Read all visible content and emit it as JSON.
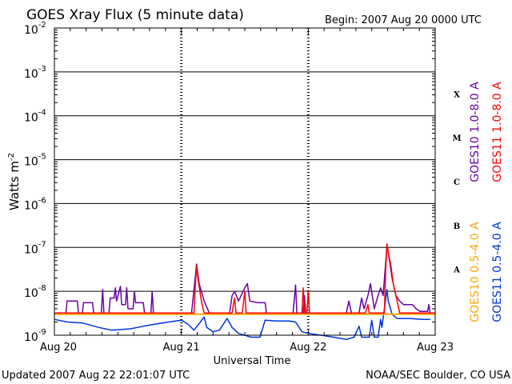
{
  "chart_data": {
    "type": "line",
    "title": "GOES Xray Flux (5 minute data)",
    "begin_label": "Begin:  2007 Aug 20 0000 UTC",
    "xlabel": "Universal Time",
    "ylabel": "Watts m",
    "ylabel_exp": "-2",
    "x_ticks": [
      "Aug 20",
      "Aug 21",
      "Aug 22",
      "Aug 23"
    ],
    "x_range_days": [
      0,
      3
    ],
    "y_scale": "log",
    "ylim": [
      1e-09,
      0.01
    ],
    "y_ticks": [
      {
        "base": "10",
        "exp": "-2"
      },
      {
        "base": "10",
        "exp": "-3"
      },
      {
        "base": "10",
        "exp": "-4"
      },
      {
        "base": "10",
        "exp": "-5"
      },
      {
        "base": "10",
        "exp": "-6"
      },
      {
        "base": "10",
        "exp": "-7"
      },
      {
        "base": "10",
        "exp": "-8"
      },
      {
        "base": "10",
        "exp": "-9"
      }
    ],
    "flare_classes": [
      "X",
      "M",
      "C",
      "B",
      "A"
    ],
    "grid": true,
    "legend_placement": "right",
    "series": [
      {
        "name": "GOES10 1.0-8.0 A",
        "color": "#6a00a8",
        "points": [
          [
            0.0,
            3.2e-09
          ],
          [
            0.09,
            3.2e-09
          ],
          [
            0.1,
            6e-09
          ],
          [
            0.18,
            6e-09
          ],
          [
            0.19,
            3.2e-09
          ],
          [
            0.22,
            3.2e-09
          ],
          [
            0.23,
            5.5e-09
          ],
          [
            0.3,
            5.5e-09
          ],
          [
            0.31,
            3.2e-09
          ],
          [
            0.37,
            3.2e-09
          ],
          [
            0.38,
            1.1e-08
          ],
          [
            0.39,
            3.2e-09
          ],
          [
            0.43,
            3.2e-09
          ],
          [
            0.44,
            7e-09
          ],
          [
            0.47,
            7e-09
          ],
          [
            0.48,
            1.2e-08
          ],
          [
            0.49,
            6e-09
          ],
          [
            0.52,
            1.3e-08
          ],
          [
            0.53,
            5e-09
          ],
          [
            0.56,
            5e-09
          ],
          [
            0.57,
            1.2e-08
          ],
          [
            0.58,
            4e-09
          ],
          [
            0.62,
            4e-09
          ],
          [
            0.63,
            1e-08
          ],
          [
            0.64,
            5.5e-09
          ],
          [
            0.7,
            5.5e-09
          ],
          [
            0.71,
            3.2e-09
          ],
          [
            0.76,
            3.2e-09
          ],
          [
            0.77,
            1e-08
          ],
          [
            0.78,
            3.2e-09
          ],
          [
            1.08,
            3.2e-09
          ],
          [
            1.1,
            1.1e-08
          ],
          [
            1.12,
            4.2e-08
          ],
          [
            1.14,
            1.5e-08
          ],
          [
            1.18,
            6e-09
          ],
          [
            1.22,
            3.2e-09
          ],
          [
            1.38,
            3.2e-09
          ],
          [
            1.4,
            8e-09
          ],
          [
            1.42,
            1e-08
          ],
          [
            1.45,
            6e-09
          ],
          [
            1.5,
            1.2e-08
          ],
          [
            1.52,
            1.5e-08
          ],
          [
            1.54,
            6e-09
          ],
          [
            1.6,
            5.5e-09
          ],
          [
            1.66,
            5.5e-09
          ],
          [
            1.67,
            3.2e-09
          ],
          [
            1.88,
            3.2e-09
          ],
          [
            1.9,
            1.4e-08
          ],
          [
            1.91,
            3.2e-09
          ],
          [
            1.96,
            3.2e-09
          ],
          [
            1.97,
            8e-09
          ],
          [
            1.98,
            3.2e-09
          ],
          [
            2.3,
            3.2e-09
          ],
          [
            2.32,
            6e-09
          ],
          [
            2.34,
            3.2e-09
          ],
          [
            2.4,
            3.2e-09
          ],
          [
            2.42,
            7e-09
          ],
          [
            2.44,
            4e-09
          ],
          [
            2.47,
            8e-09
          ],
          [
            2.49,
            1.5e-08
          ],
          [
            2.52,
            4e-09
          ],
          [
            2.55,
            8e-09
          ],
          [
            2.57,
            1.2e-08
          ],
          [
            2.59,
            8e-09
          ],
          [
            2.62,
            1.1e-07
          ],
          [
            2.64,
            5e-08
          ],
          [
            2.66,
            2e-08
          ],
          [
            2.69,
            8e-09
          ],
          [
            2.72,
            6e-09
          ],
          [
            2.75,
            5e-09
          ],
          [
            2.82,
            5e-09
          ],
          [
            2.85,
            4e-09
          ],
          [
            2.88,
            3.5e-09
          ],
          [
            2.94,
            3.5e-09
          ],
          [
            2.95,
            5e-09
          ],
          [
            2.96,
            3.2e-09
          ]
        ]
      },
      {
        "name": "GOES11 1.0-8.0 A",
        "color": "#ff0000",
        "points": [
          [
            0.0,
            3.2e-09
          ],
          [
            0.99,
            3.2e-09
          ],
          [
            1.1,
            3.2e-09
          ],
          [
            1.11,
            1.3e-08
          ],
          [
            1.12,
            3.8e-08
          ],
          [
            1.13,
            2e-08
          ],
          [
            1.16,
            5.5e-09
          ],
          [
            1.18,
            3.2e-09
          ],
          [
            1.4,
            3.2e-09
          ],
          [
            1.41,
            5e-09
          ],
          [
            1.42,
            7e-09
          ],
          [
            1.43,
            3.2e-09
          ],
          [
            1.48,
            3.2e-09
          ],
          [
            1.5,
            1e-08
          ],
          [
            1.51,
            3.2e-09
          ],
          [
            1.95,
            3.2e-09
          ],
          [
            1.96,
            1.2e-08
          ],
          [
            1.97,
            3.2e-09
          ],
          [
            1.99,
            3.2e-09
          ],
          [
            2.0,
            1e-08
          ],
          [
            2.01,
            3.2e-09
          ],
          [
            2.45,
            3.2e-09
          ],
          [
            2.47,
            5e-09
          ],
          [
            2.48,
            3.2e-09
          ],
          [
            2.6,
            3.2e-09
          ],
          [
            2.61,
            3e-08
          ],
          [
            2.62,
            1.2e-07
          ],
          [
            2.63,
            8e-08
          ],
          [
            2.65,
            4e-08
          ],
          [
            2.67,
            1.5e-08
          ],
          [
            2.7,
            6e-09
          ],
          [
            2.72,
            3.2e-09
          ],
          [
            3.0,
            3.2e-09
          ]
        ]
      },
      {
        "name": "GOES10 0.5-4.0 A",
        "color": "#ffa500",
        "points": [
          [
            0.0,
            3e-09
          ],
          [
            3.0,
            3e-09
          ]
        ]
      },
      {
        "name": "GOES11 0.5-4.0 A",
        "color": "#0033dd",
        "points": [
          [
            0.0,
            2.3e-09
          ],
          [
            0.1,
            2e-09
          ],
          [
            0.22,
            1.9e-09
          ],
          [
            0.35,
            1.5e-09
          ],
          [
            0.45,
            1.3e-09
          ],
          [
            0.6,
            1.4e-09
          ],
          [
            0.7,
            1.6e-09
          ],
          [
            0.8,
            1.8e-09
          ],
          [
            0.9,
            2e-09
          ],
          [
            1.0,
            2.2e-09
          ],
          [
            1.05,
            1.8e-09
          ],
          [
            1.1,
            1.3e-09
          ],
          [
            1.15,
            2e-09
          ],
          [
            1.18,
            2.6e-09
          ],
          [
            1.2,
            1.5e-09
          ],
          [
            1.25,
            1.2e-09
          ],
          [
            1.3,
            1.3e-09
          ],
          [
            1.36,
            2.4e-09
          ],
          [
            1.4,
            1.5e-09
          ],
          [
            1.45,
            1.1e-09
          ],
          [
            1.55,
            9e-10
          ],
          [
            1.62,
            9e-10
          ],
          [
            1.66,
            2.2e-09
          ],
          [
            1.75,
            2.1e-09
          ],
          [
            1.85,
            2.1e-09
          ],
          [
            1.9,
            2e-09
          ],
          [
            1.95,
            1.2e-09
          ],
          [
            2.0,
            1.1e-09
          ],
          [
            2.1,
            1e-09
          ],
          [
            2.2,
            9e-10
          ],
          [
            2.3,
            8e-10
          ],
          [
            2.36,
            9e-10
          ],
          [
            2.4,
            1.6e-09
          ],
          [
            2.42,
            9e-10
          ],
          [
            2.48,
            9e-10
          ],
          [
            2.5,
            2.2e-09
          ],
          [
            2.52,
            9e-10
          ],
          [
            2.55,
            9e-10
          ],
          [
            2.57,
            2.3e-09
          ],
          [
            2.58,
            1.5e-09
          ],
          [
            2.6,
            4e-09
          ],
          [
            2.62,
            1.1e-08
          ],
          [
            2.63,
            6e-09
          ],
          [
            2.66,
            3e-09
          ],
          [
            2.7,
            2.4e-09
          ],
          [
            2.8,
            2.4e-09
          ],
          [
            2.9,
            2.3e-09
          ],
          [
            2.96,
            2.3e-09
          ]
        ]
      }
    ]
  },
  "footer": {
    "updated": "Updated 2007 Aug 22 22:01:07 UTC",
    "source": "NOAA/SEC Boulder, CO USA"
  }
}
